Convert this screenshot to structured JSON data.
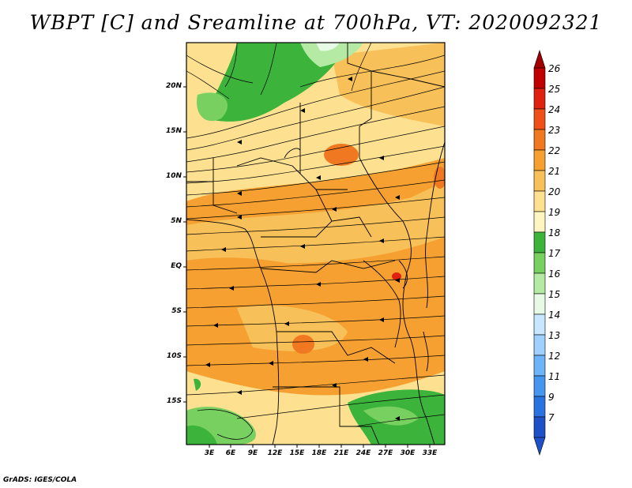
{
  "title": "WBPT [C] and Sreamline at 700hPa, VT: 2020092321",
  "credit": "GrADS: IGES/COLA",
  "axes": {
    "lat_labels": [
      "20N",
      "15N",
      "10N",
      "5N",
      "EQ",
      "5S",
      "10S",
      "15S"
    ],
    "lon_labels": [
      "3E",
      "6E",
      "9E",
      "12E",
      "15E",
      "18E",
      "21E",
      "24E",
      "27E",
      "30E",
      "33E"
    ]
  },
  "colorbar": {
    "labels": [
      "26",
      "25",
      "24",
      "23",
      "22",
      "21",
      "20",
      "19",
      "18",
      "17",
      "16",
      "15",
      "14",
      "13",
      "12",
      "11",
      "9",
      "7"
    ],
    "colors": [
      "#c00000",
      "#e02010",
      "#f05018",
      "#f07820",
      "#f5a030",
      "#f8c058",
      "#fde090",
      "#fff5c0",
      "#3cb43c",
      "#78d060",
      "#b4eaa4",
      "#e6fae6",
      "#c8e6ff",
      "#9fd0ff",
      "#6eb4f8",
      "#4696f0",
      "#2a72e0",
      "#1e50c8"
    ]
  }
}
